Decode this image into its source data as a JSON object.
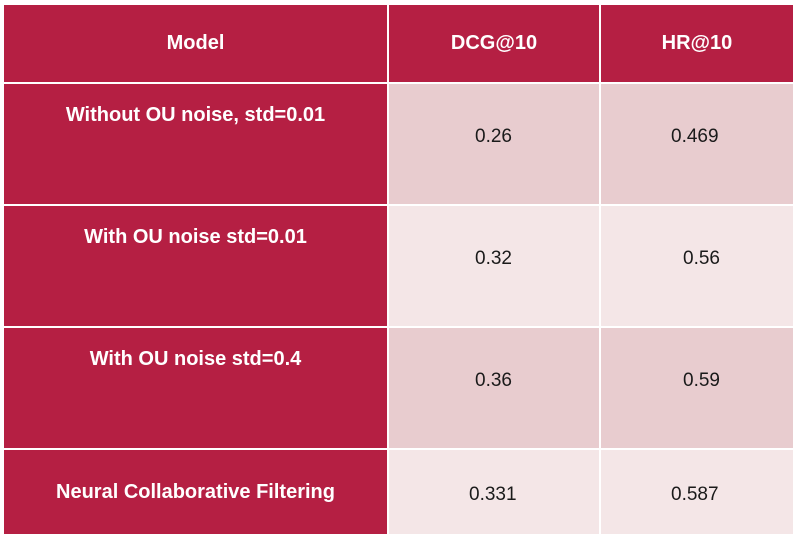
{
  "table": {
    "headers": [
      "Model",
      "DCG@10",
      "HR@10"
    ],
    "rows": [
      {
        "model": "Without OU noise, std=0.01",
        "dcg": "0.26",
        "hr": "0.469"
      },
      {
        "model": "With OU noise std=0.01",
        "dcg": "0.32",
        "hr": "0.56"
      },
      {
        "model": "With OU noise std=0.4",
        "dcg": "0.36",
        "hr": "0.59"
      },
      {
        "model": "Neural Collaborative Filtering",
        "dcg": "0.331",
        "hr": "0.587"
      }
    ]
  },
  "colors": {
    "header_bg": "#b51f43",
    "model_col_bg": "#b51f43",
    "row_odd_bg": "#e8cccf",
    "row_even_bg": "#f4e6e7"
  }
}
